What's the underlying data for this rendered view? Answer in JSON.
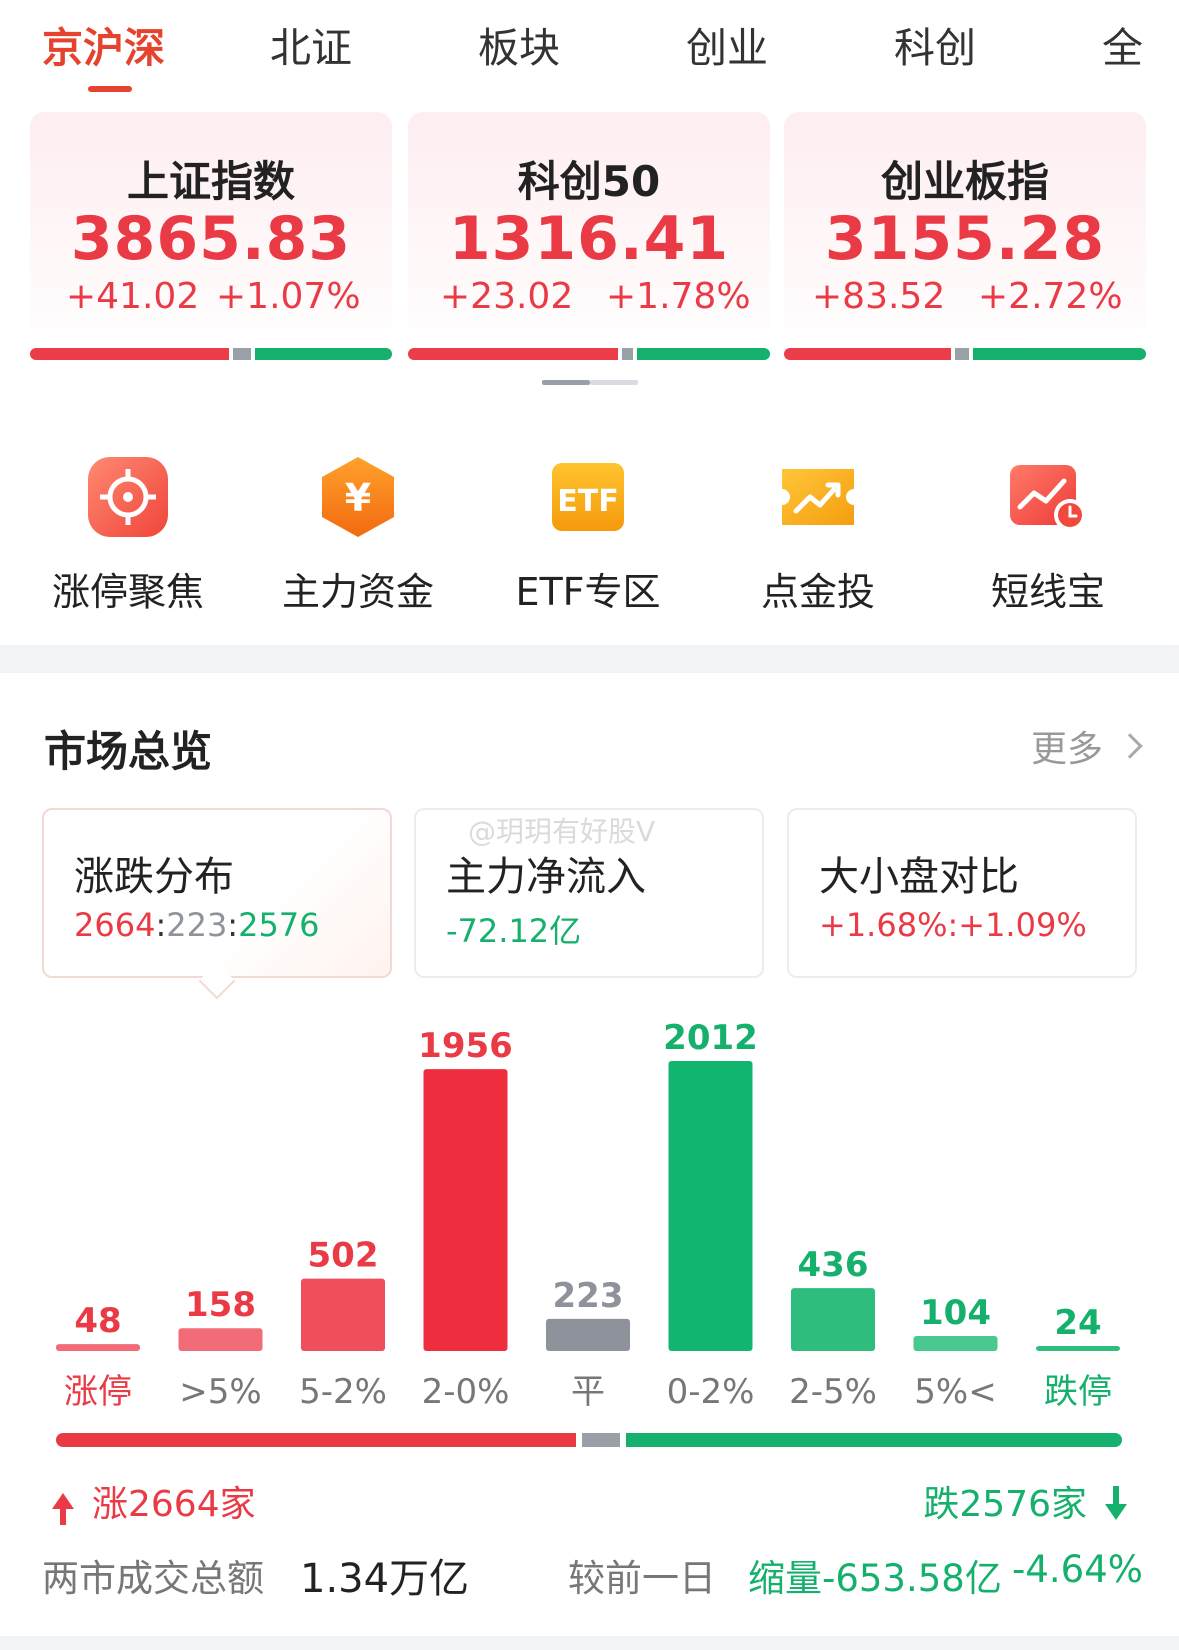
{
  "tabs": [
    {
      "label": "京沪深",
      "active": true
    },
    {
      "label": "北证"
    },
    {
      "label": "板块"
    },
    {
      "label": "创业"
    },
    {
      "label": "科创"
    },
    {
      "label": "全"
    }
  ],
  "indices": [
    {
      "name": "上证指数",
      "value": "3865.83",
      "change": "+41.02",
      "pct": "+1.07%",
      "breadth": {
        "up": 0.55,
        "flat": 0.05,
        "down": 0.4
      }
    },
    {
      "name": "科创50",
      "value": "1316.41",
      "change": "+23.02",
      "pct": "+1.78%",
      "breadth": {
        "up": 0.58,
        "flat": 0.03,
        "down": 0.39
      }
    },
    {
      "name": "创业板指",
      "value": "3155.28",
      "change": "+83.52",
      "pct": "+2.72%",
      "breadth": {
        "up": 0.46,
        "flat": 0.04,
        "down": 0.5
      }
    }
  ],
  "shortcuts": [
    {
      "label": "涨停聚焦",
      "icon": "target-icon"
    },
    {
      "label": "主力资金",
      "icon": "yuan-hexagon-icon"
    },
    {
      "label": "ETF专区",
      "icon": "etf-icon"
    },
    {
      "label": "点金投",
      "icon": "ticket-trend-icon"
    },
    {
      "label": "短线宝",
      "icon": "chart-clock-icon"
    }
  ],
  "market": {
    "title": "市场总览",
    "more": "更多",
    "cards": [
      {
        "title": "涨跌分布",
        "up": "2664",
        "flat": "223",
        "down": "2576",
        "sep": ":"
      },
      {
        "title": "主力净流入",
        "value": "-72.12亿"
      },
      {
        "title": "大小盘对比",
        "value": "+1.68%:+1.09%"
      }
    ],
    "watermark": "@玥玥有好股V",
    "rise_label": "涨2664家",
    "fall_label": "跌2576家",
    "turnover_label": "两市成交总额",
    "turnover_value": "1.34万亿",
    "compare_label": "较前一日",
    "compare_value": "缩量-653.58亿",
    "compare_pct": "-4.64%"
  },
  "colors": {
    "up": "#ea3a46",
    "down": "#14b06c",
    "flat": "#8e939b",
    "accent": "#e5432e"
  },
  "chart_data": {
    "type": "bar",
    "categories": [
      "涨停",
      ">5%",
      "5-2%",
      "2-0%",
      "平",
      "0-2%",
      "2-5%",
      "5%<",
      "跌停"
    ],
    "values": [
      48,
      158,
      502,
      1956,
      223,
      2012,
      436,
      104,
      24
    ],
    "bar_colors": [
      "#f26c78",
      "#f26c78",
      "#f04e5c",
      "#ee2d3f",
      "#8e939b",
      "#12b56f",
      "#2fbd7e",
      "#49c88f",
      "#2fbd7e"
    ],
    "label_colors": [
      "#ea3a46",
      "#ea3a46",
      "#ea3a46",
      "#ea3a46",
      "#8e939b",
      "#14b06c",
      "#14b06c",
      "#14b06c",
      "#14b06c"
    ],
    "category_colors": [
      "#ea3a46",
      "#777777",
      "#777777",
      "#777777",
      "#777777",
      "#777777",
      "#777777",
      "#777777",
      "#14b06c"
    ],
    "breadth": {
      "up": 2664,
      "flat": 223,
      "down": 2576
    }
  }
}
